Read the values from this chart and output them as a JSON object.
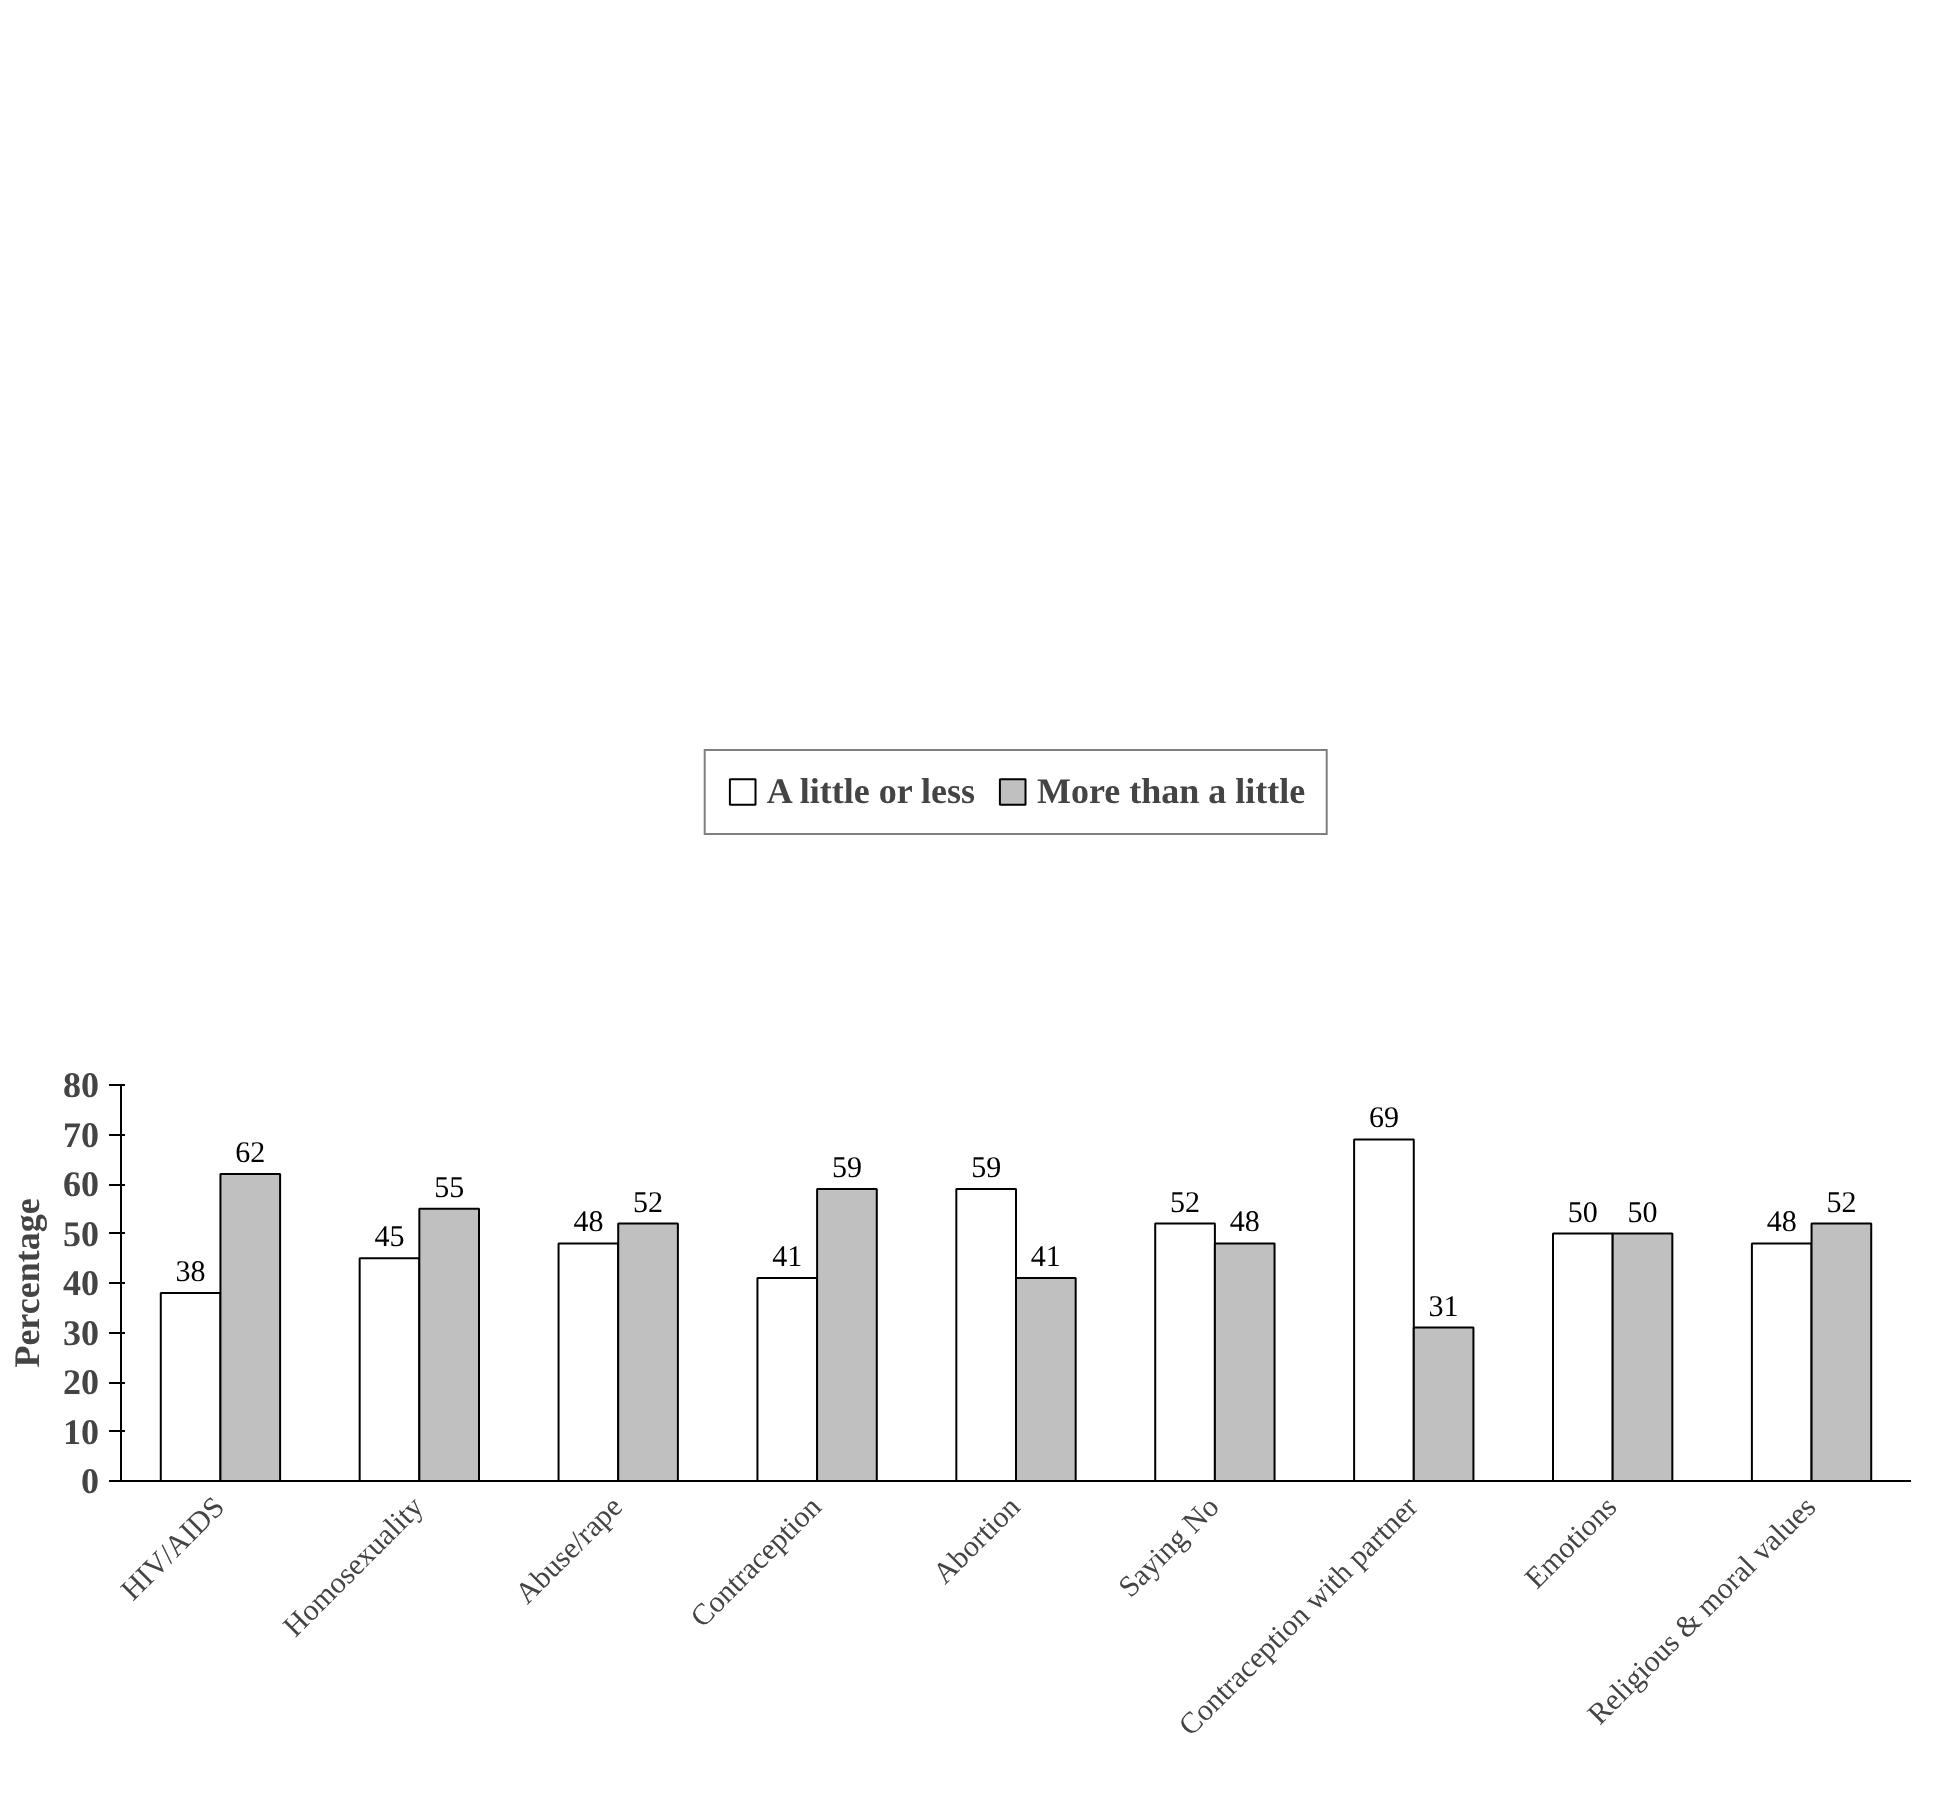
{
  "chart_data": {
    "type": "bar",
    "ylabel": "Percentage",
    "categories": [
      "HIV/AIDS",
      "Homosexuality",
      "Abuse/rape",
      "Contraception",
      "Abortion",
      "Saying No",
      "Contraception with partner",
      "Emotions",
      "Religious & moral values"
    ],
    "series": [
      {
        "name": "A little or less",
        "color": "#ffffff",
        "values": [
          38,
          45,
          48,
          41,
          59,
          52,
          69,
          50,
          48
        ]
      },
      {
        "name": "More than a little",
        "color": "#c0c0c0",
        "values": [
          62,
          55,
          52,
          59,
          41,
          48,
          31,
          50,
          52
        ]
      }
    ],
    "ylim": [
      0,
      80
    ],
    "yticks": [
      0,
      10,
      20,
      30,
      40,
      50,
      60,
      70,
      80
    ],
    "grid": false,
    "legend": "top",
    "data_labels": true
  }
}
